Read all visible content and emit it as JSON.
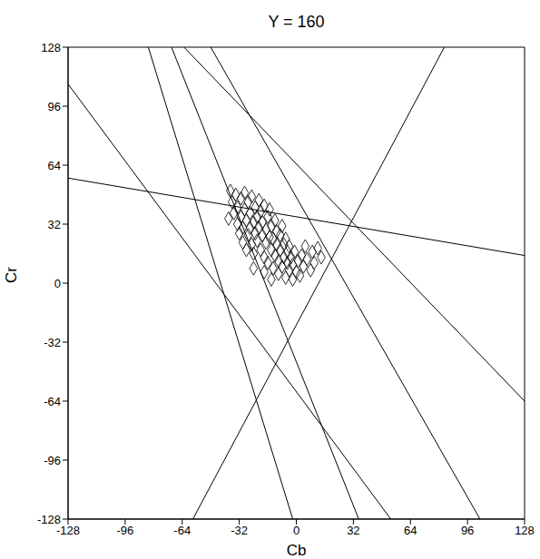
{
  "chart_data": {
    "type": "scatter",
    "title": "Y = 160",
    "x_label": "Cb",
    "y_label": "Cr",
    "xlim": [
      -128,
      128
    ],
    "ylim": [
      -128,
      128
    ],
    "xticks": [
      -128,
      -96,
      -64,
      -32,
      0,
      32,
      64,
      96,
      128
    ],
    "yticks": [
      -128,
      -96,
      -64,
      -32,
      0,
      32,
      64,
      96,
      128
    ],
    "grid": false,
    "series": [
      {
        "type": "scatter",
        "color": "#000000",
        "marker": "diamond",
        "x": [
          -36,
          -35,
          -34,
          -33,
          -33,
          -32,
          -31,
          -31,
          -30,
          -30,
          -29,
          -29,
          -28,
          -28,
          -27,
          -27,
          -26,
          -26,
          -25,
          -25,
          -24,
          -24,
          -23,
          -23,
          -22,
          -22,
          -21,
          -21,
          -20,
          -20,
          -19,
          -19,
          -18,
          -18,
          -17,
          -17,
          -16,
          -16,
          -15,
          -15,
          -14,
          -14,
          -13,
          -13,
          -12,
          -12,
          -11,
          -11,
          -10,
          -10,
          -9,
          -9,
          -8,
          -8,
          -7,
          -7,
          -6,
          -6,
          -5,
          -5,
          -4,
          -4,
          -3,
          -2,
          -2,
          -1,
          0,
          1,
          2,
          3,
          4,
          5,
          6,
          8,
          9,
          10,
          12,
          14,
          -38,
          -37,
          -24,
          -18,
          -14
        ],
        "y": [
          44,
          38,
          48,
          32,
          41,
          27,
          46,
          36,
          22,
          30,
          40,
          49,
          34,
          18,
          26,
          44,
          38,
          30,
          21,
          47,
          33,
          16,
          27,
          41,
          36,
          23,
          30,
          45,
          18,
          39,
          26,
          33,
          42,
          14,
          29,
          22,
          36,
          11,
          25,
          40,
          18,
          31,
          8,
          24,
          34,
          15,
          21,
          28,
          5,
          12,
          26,
          18,
          9,
          31,
          14,
          21,
          3,
          24,
          11,
          17,
          7,
          20,
          14,
          2,
          10,
          17,
          6,
          12,
          4,
          15,
          9,
          20,
          13,
          7,
          17,
          11,
          19,
          14,
          35,
          50,
          8,
          6,
          2
        ]
      },
      {
        "type": "line",
        "color": "#000000",
        "line_style": "solid",
        "x": [
          -128,
          53
        ],
        "y": [
          108,
          -128
        ]
      },
      {
        "type": "line",
        "color": "#000000",
        "line_style": "solid",
        "x": [
          -128,
          128
        ],
        "y": [
          57,
          15
        ]
      },
      {
        "type": "line",
        "color": "#000000",
        "line_style": "solid",
        "x": [
          -83,
          -2
        ],
        "y": [
          128,
          -128
        ]
      },
      {
        "type": "line",
        "color": "#000000",
        "line_style": "solid",
        "x": [
          -70,
          35
        ],
        "y": [
          128,
          -128
        ]
      },
      {
        "type": "line",
        "color": "#000000",
        "line_style": "solid",
        "x": [
          -63,
          128
        ],
        "y": [
          128,
          -64
        ]
      },
      {
        "type": "line",
        "color": "#000000",
        "line_style": "solid",
        "x": [
          -58,
          83
        ],
        "y": [
          -128,
          128
        ]
      },
      {
        "type": "line",
        "color": "#000000",
        "line_style": "solid",
        "x": [
          -48,
          103
        ],
        "y": [
          128,
          -128
        ]
      }
    ]
  }
}
